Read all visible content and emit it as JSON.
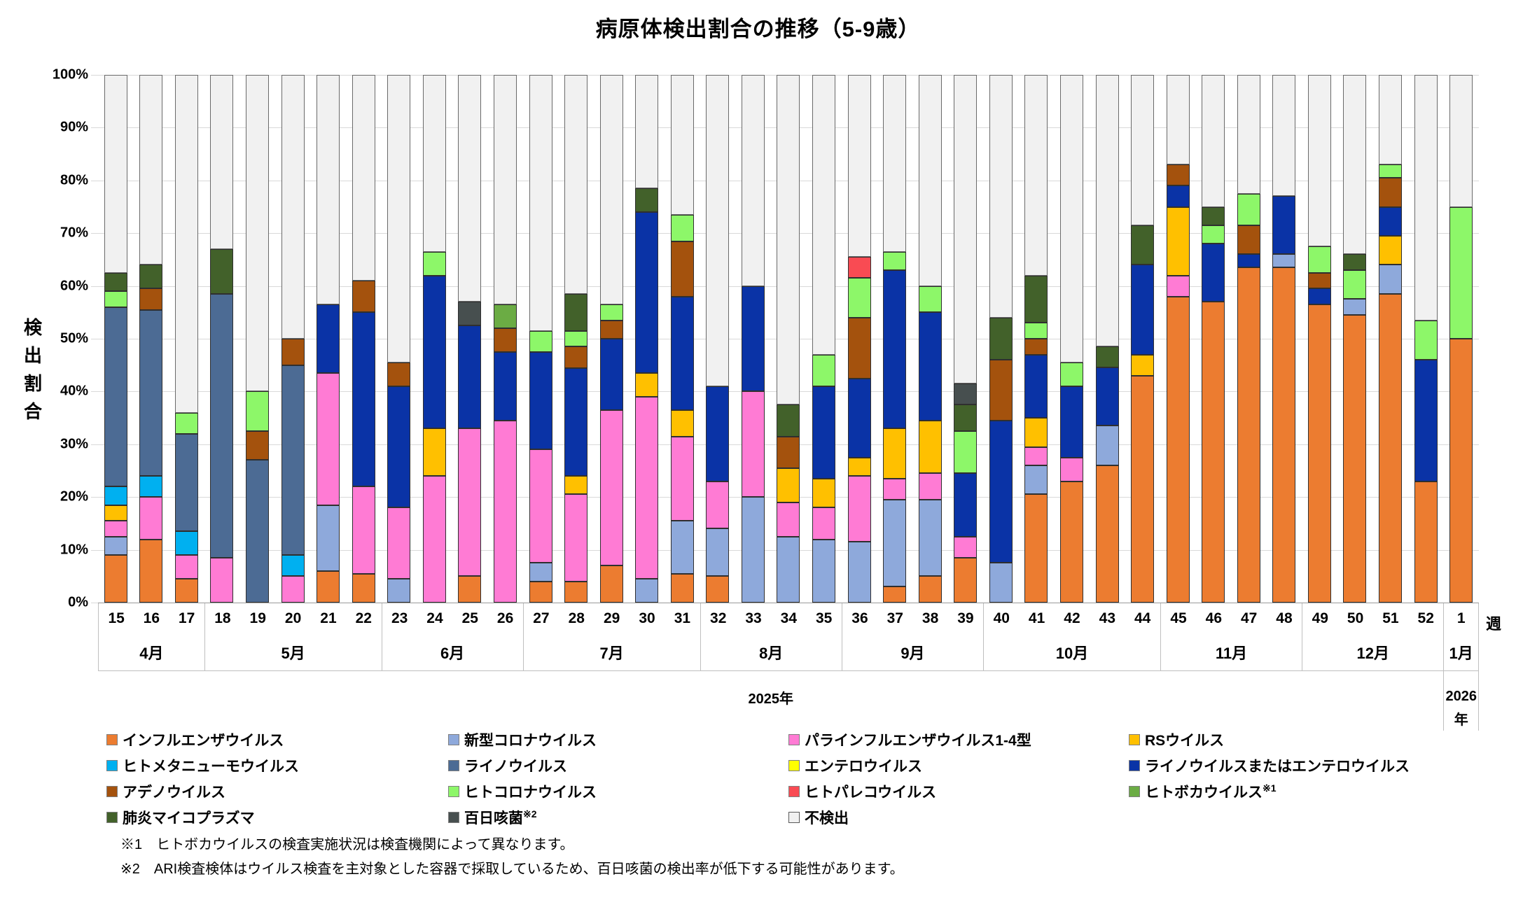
{
  "title": "病原体検出割合の推移（5-9歳）",
  "y_axis": {
    "title": "検出割合",
    "title_chars": [
      "検",
      "出",
      "割",
      "合"
    ],
    "ticks": [
      "100%",
      "90%",
      "80%",
      "70%",
      "60%",
      "50%",
      "40%",
      "30%",
      "20%",
      "10%",
      "0%"
    ]
  },
  "x_axis": {
    "unit_label": "週",
    "months": [
      {
        "label": "4月",
        "span": 3
      },
      {
        "label": "5月",
        "span": 5
      },
      {
        "label": "6月",
        "span": 4
      },
      {
        "label": "7月",
        "span": 5
      },
      {
        "label": "8月",
        "span": 4
      },
      {
        "label": "9月",
        "span": 4
      },
      {
        "label": "10月",
        "span": 5
      },
      {
        "label": "11月",
        "span": 4
      },
      {
        "label": "12月",
        "span": 4
      },
      {
        "label": "1月",
        "span": 1
      }
    ],
    "years": [
      {
        "label": "2025年",
        "span": 38
      },
      {
        "label": "2026年",
        "line1": "2026",
        "line2": "年",
        "span": 1
      }
    ]
  },
  "chart_data": {
    "type": "bar",
    "stacked": true,
    "unit": "percent",
    "ylim": [
      0,
      100
    ],
    "grid": true,
    "weeks": [
      "15",
      "16",
      "17",
      "18",
      "19",
      "20",
      "21",
      "22",
      "23",
      "24",
      "25",
      "26",
      "27",
      "28",
      "29",
      "30",
      "31",
      "32",
      "33",
      "34",
      "35",
      "36",
      "37",
      "38",
      "39",
      "40",
      "41",
      "42",
      "43",
      "44",
      "45",
      "46",
      "47",
      "48",
      "49",
      "50",
      "51",
      "52",
      "1"
    ],
    "series": [
      {
        "key": "influenza",
        "name": "インフルエンザウイルス",
        "color": "#EC7C30",
        "values": [
          9,
          12,
          4.5,
          0,
          0,
          0,
          6,
          5.5,
          0,
          0,
          5,
          0,
          4,
          4,
          7,
          0,
          5.5,
          5,
          0,
          0,
          0,
          0,
          3,
          5,
          8.5,
          0,
          20.5,
          23,
          26,
          43,
          58,
          57,
          63.5,
          63.5,
          56.5,
          54.5,
          58.5,
          23,
          50
        ]
      },
      {
        "key": "covid",
        "name": "新型コロナウイルス",
        "color": "#8EA9DB",
        "values": [
          3.5,
          0,
          0,
          0,
          0,
          0,
          12.5,
          0,
          4.5,
          0,
          0,
          0,
          3.5,
          0,
          0,
          4.5,
          10,
          9,
          20,
          12.5,
          12,
          11.5,
          16.5,
          14.5,
          0,
          7.5,
          5.5,
          0,
          7.5,
          0,
          0,
          0,
          0,
          2.5,
          0,
          3,
          5.5,
          0,
          0
        ]
      },
      {
        "key": "parainfluenza",
        "name": "パラインフルエンザウイルス1-4型",
        "color": "#FF7BD4",
        "values": [
          3,
          8,
          4.5,
          8.5,
          0,
          5,
          25,
          16.5,
          13.5,
          24,
          28,
          34.5,
          21.5,
          16.5,
          29.5,
          34.5,
          16,
          9,
          20,
          6.5,
          6,
          12.5,
          4,
          5,
          4,
          0,
          3.5,
          4.5,
          0,
          0,
          4,
          0,
          0,
          0,
          0,
          0,
          0,
          0,
          0
        ]
      },
      {
        "key": "rs",
        "name": "RSウイルス",
        "color": "#FFC000",
        "values": [
          3,
          0,
          0,
          0,
          0,
          0,
          0,
          0,
          0,
          9,
          0,
          0,
          0,
          3.5,
          0,
          4.5,
          5,
          0,
          0,
          6.5,
          5.5,
          3.5,
          9.5,
          10,
          0,
          0,
          5.5,
          0,
          0,
          4,
          13,
          0,
          0,
          0,
          0,
          0,
          5.5,
          0,
          0
        ]
      },
      {
        "key": "metapneumo",
        "name": "ヒトメタニューモウイルス",
        "color": "#00B0F0",
        "values": [
          3.5,
          4,
          4.5,
          0,
          0,
          4,
          0,
          0,
          0,
          0,
          0,
          0,
          0,
          0,
          0,
          0,
          0,
          0,
          0,
          0,
          0,
          0,
          0,
          0,
          0,
          0,
          0,
          0,
          0,
          0,
          0,
          0,
          0,
          0,
          0,
          0,
          0,
          0,
          0
        ]
      },
      {
        "key": "rhino",
        "name": "ライノウイルス",
        "color": "#4C6B94",
        "values": [
          34,
          31.5,
          18.5,
          50,
          27,
          36,
          0,
          0,
          0,
          0,
          0,
          0,
          0,
          0,
          0,
          0,
          0,
          0,
          0,
          0,
          0,
          0,
          0,
          0,
          0,
          0,
          0,
          0,
          0,
          0,
          0,
          0,
          0,
          0,
          0,
          0,
          0,
          0,
          0
        ]
      },
      {
        "key": "entero",
        "name": "エンテロウイルス",
        "color": "#FFFF00",
        "values": [
          0,
          0,
          0,
          0,
          0,
          0,
          0,
          0,
          0,
          0,
          0,
          0,
          0,
          0,
          0,
          0,
          0,
          0,
          0,
          0,
          0,
          0,
          0,
          0,
          0,
          0,
          0,
          0,
          0,
          0,
          0,
          0,
          0,
          0,
          0,
          0,
          0,
          0,
          0
        ]
      },
      {
        "key": "rhino_entero",
        "name": "ライノウイルスまたはエンテロウイルス",
        "color": "#0A33A6",
        "values": [
          0,
          0,
          0,
          0,
          0,
          0,
          13,
          33,
          23,
          29,
          19.5,
          13,
          18.5,
          20.5,
          13.5,
          30.5,
          21.5,
          18,
          20,
          0,
          17.5,
          15,
          30,
          20.5,
          12,
          27,
          12,
          13.5,
          11,
          17,
          4,
          11,
          2.5,
          11,
          3,
          0,
          5.5,
          23,
          0
        ]
      },
      {
        "key": "adeno",
        "name": "アデノウイルス",
        "color": "#A4520D",
        "values": [
          0,
          4,
          0,
          0,
          5.5,
          5,
          0,
          6,
          4.5,
          0,
          0,
          4.5,
          0,
          4,
          3.5,
          0,
          10.5,
          0,
          0,
          6,
          0,
          11.5,
          0,
          0,
          0,
          11.5,
          3,
          0,
          0,
          0,
          4,
          0,
          5.5,
          0,
          3,
          0,
          5.5,
          0,
          0
        ]
      },
      {
        "key": "corona",
        "name": "ヒトコロナウイルス",
        "color": "#8DF769",
        "values": [
          3,
          0,
          4,
          0,
          7.5,
          0,
          0,
          0,
          0,
          4.5,
          0,
          0,
          4,
          3,
          3,
          0,
          5,
          0,
          0,
          0,
          6,
          7.5,
          3.5,
          5,
          8,
          0,
          3,
          4.5,
          0,
          0,
          0,
          3.5,
          6,
          0,
          5,
          5.5,
          2.5,
          7.5,
          25
        ]
      },
      {
        "key": "pareco",
        "name": "ヒトパレコウイルス",
        "color": "#F94B53",
        "values": [
          0,
          0,
          0,
          0,
          0,
          0,
          0,
          0,
          0,
          0,
          0,
          0,
          0,
          0,
          0,
          0,
          0,
          0,
          0,
          0,
          0,
          4,
          0,
          0,
          0,
          0,
          0,
          0,
          0,
          0,
          0,
          0,
          0,
          0,
          0,
          0,
          0,
          0,
          0
        ]
      },
      {
        "key": "boca",
        "name": "ヒトボカウイルス",
        "color": "#6BAC44",
        "values": [
          0,
          0,
          0,
          0,
          0,
          0,
          0,
          0,
          0,
          0,
          0,
          4.5,
          0,
          0,
          0,
          0,
          0,
          0,
          0,
          0,
          0,
          0,
          0,
          0,
          0,
          0,
          0,
          0,
          0,
          0,
          0,
          0,
          0,
          0,
          0,
          0,
          0,
          0,
          0
        ]
      },
      {
        "key": "myco",
        "name": "肺炎マイコプラズマ",
        "color": "#42612A",
        "values": [
          3.5,
          4.5,
          0,
          8.5,
          0,
          0,
          0,
          0,
          0,
          0,
          0,
          0,
          0,
          7,
          0,
          4.5,
          0,
          0,
          0,
          6,
          0,
          0,
          0,
          0,
          5,
          8,
          9,
          0,
          4,
          7.5,
          0,
          3.5,
          0,
          0,
          0,
          3,
          0,
          0,
          0
        ]
      },
      {
        "key": "pertussis",
        "name": "百日咳菌",
        "color": "#474F4F",
        "values": [
          0,
          0,
          0,
          0,
          0,
          0,
          0,
          0,
          0,
          0,
          4.5,
          0,
          0,
          0,
          0,
          0,
          0,
          0,
          0,
          0,
          0,
          0,
          0,
          0,
          4,
          0,
          0,
          0,
          0,
          0,
          0,
          0,
          0,
          0,
          0,
          0,
          0,
          0,
          0
        ]
      }
    ],
    "not_detected": {
      "key": "not_detected",
      "name": "不検出",
      "color": "#F1F1F1",
      "values": [
        37.5,
        36,
        64,
        33,
        60,
        50,
        43.5,
        39,
        54.5,
        33.5,
        43,
        43.5,
        48.5,
        41.5,
        43.5,
        21.5,
        26.5,
        59,
        40,
        62.5,
        53,
        34.5,
        33.5,
        40,
        58.5,
        46,
        38,
        54.5,
        51.5,
        28.5,
        17,
        25,
        22.5,
        23,
        32.5,
        34,
        17,
        46.5,
        25
      ]
    }
  },
  "legend": {
    "items": [
      {
        "key": "influenza",
        "label": "インフルエンザウイルス",
        "color": "#EC7C30"
      },
      {
        "key": "covid",
        "label": "新型コロナウイルス",
        "color": "#8EA9DB"
      },
      {
        "key": "parainfluenza",
        "label": "パラインフルエンザウイルス1-4型",
        "color": "#FF7BD4"
      },
      {
        "key": "rs",
        "label": "RSウイルス",
        "color": "#FFC000"
      },
      {
        "key": "metapneumo",
        "label": "ヒトメタニューモウイルス",
        "color": "#00B0F0"
      },
      {
        "key": "rhino",
        "label": "ライノウイルス",
        "color": "#4C6B94"
      },
      {
        "key": "entero",
        "label": "エンテロウイルス",
        "color": "#FFFF00"
      },
      {
        "key": "rhino_entero",
        "label": "ライノウイルスまたはエンテロウイルス",
        "color": "#0A33A6"
      },
      {
        "key": "adeno",
        "label": "アデノウイルス",
        "color": "#A4520D"
      },
      {
        "key": "corona",
        "label": "ヒトコロナウイルス",
        "color": "#8DF769"
      },
      {
        "key": "pareco",
        "label": "ヒトパレコウイルス",
        "color": "#F94B53"
      },
      {
        "key": "boca",
        "label": "ヒトボカウイルス",
        "sup": "※1",
        "color": "#6BAC44"
      },
      {
        "key": "myco",
        "label": "肺炎マイコプラズマ",
        "color": "#42612A"
      },
      {
        "key": "pertussis",
        "label": "百日咳菌",
        "sup": "※2",
        "color": "#474F4F"
      },
      {
        "key": "not_detected",
        "label": "不検出",
        "color": "#F1F1F1",
        "border": "#595959"
      }
    ]
  },
  "footnotes": [
    "※1　ヒトボカウイルスの検査実施状況は検査機関によって異なります。",
    "※2　ARI検査検体はウイルス検査を主対象とした容器で採取しているため、百日咳菌の検出率が低下する可能性があります。"
  ]
}
